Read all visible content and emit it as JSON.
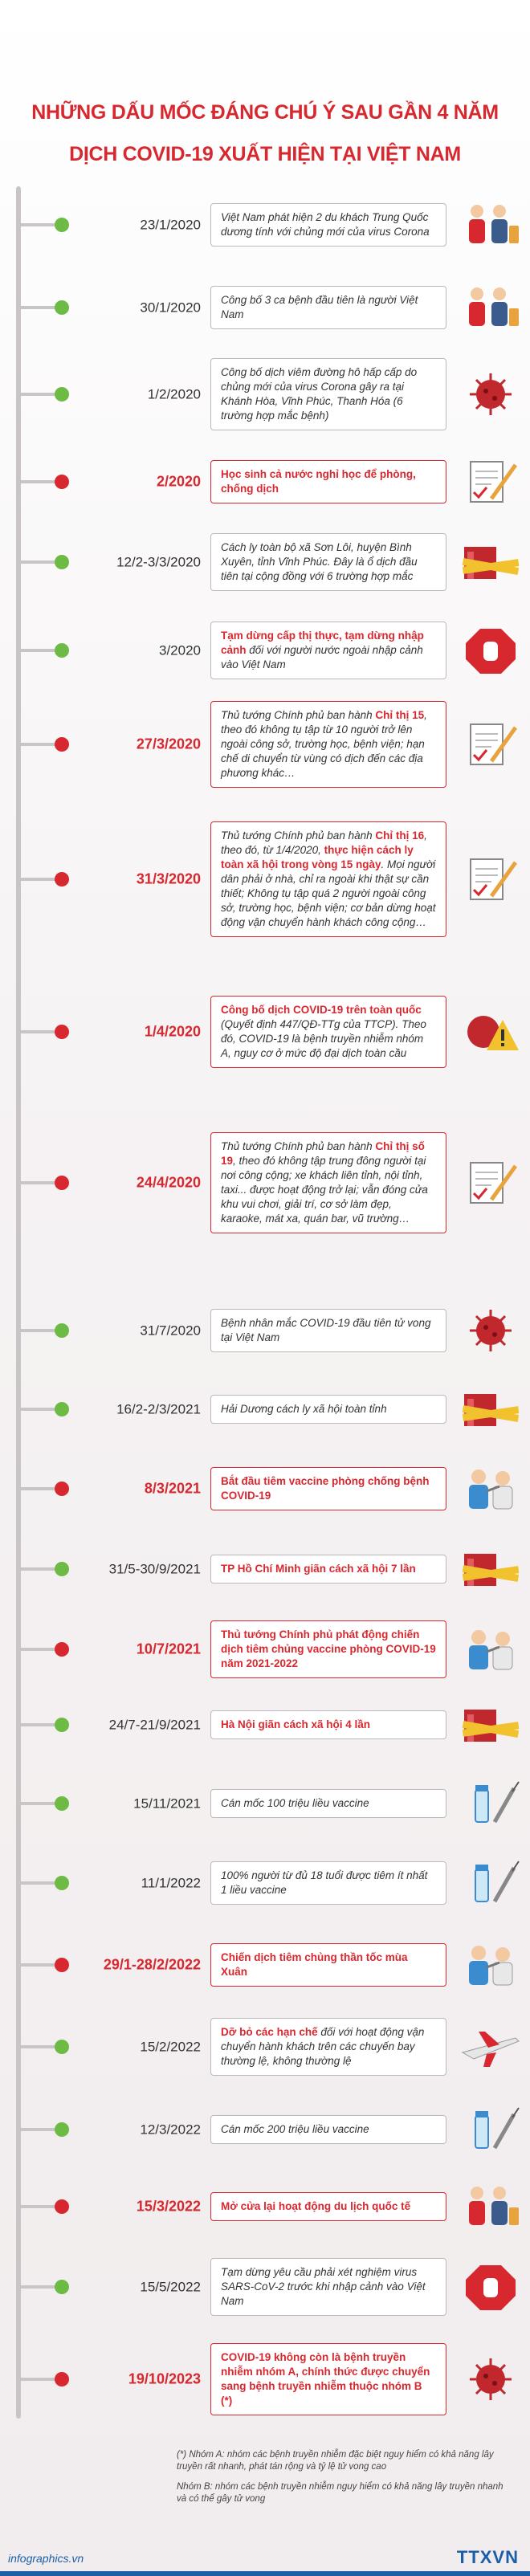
{
  "header": {
    "title_lines": [
      "NHỮNG DẤU MỐC ĐÁNG CHÚ Ý SAU GẦN 4 NĂM",
      "DỊCH COVID-19 XUẤT HIỆN TẠI VIỆT NAM"
    ]
  },
  "timeline": [
    {
      "date": "23/1/2020",
      "highlight": false,
      "parts": [
        {
          "text": "Việt Nam phát hiện 2 du khách Trung Quốc dương tính với chủng mới của virus Corona",
          "strong": false
        }
      ]
    },
    {
      "date": "30/1/2020",
      "highlight": false,
      "parts": [
        {
          "text": "Công bố 3 ca bệnh đầu tiên là người Việt Nam",
          "strong": false
        }
      ]
    },
    {
      "date": "1/2/2020",
      "highlight": false,
      "parts": [
        {
          "text": "Công bố dịch viêm đường hô hấp cấp do chủng mới của virus Corona gây ra tại Khánh Hòa, Vĩnh Phúc, Thanh Hóa (6 trường hợp mắc bệnh)",
          "strong": false
        }
      ]
    },
    {
      "date": "2/2020",
      "highlight": true,
      "parts": [
        {
          "text": "Học sinh cả nước nghỉ học để phòng, chống dịch",
          "strong": true
        }
      ]
    },
    {
      "date": "12/2-3/3/2020",
      "highlight": false,
      "parts": [
        {
          "text": "Cách ly toàn bộ xã Sơn Lôi, huyện Bình Xuyên, tỉnh Vĩnh Phúc. Đây là ổ dịch đầu tiên tại cộng đồng với 6 trường hợp mắc",
          "strong": false
        }
      ]
    },
    {
      "date": "3/2020",
      "highlight": false,
      "parts": [
        {
          "text": "Tạm dừng cấp thị thực, tạm dừng nhập cảnh",
          "strong": true
        },
        {
          "text": " đối với người nước ngoài nhập cảnh vào Việt Nam",
          "strong": false
        }
      ]
    },
    {
      "date": "27/3/2020",
      "highlight": true,
      "parts": [
        {
          "text": "Thủ tướng Chính phủ ban hành ",
          "strong": false
        },
        {
          "text": "Chỉ thị 15",
          "strong": true
        },
        {
          "text": ", theo đó không tụ tập từ 10 người trở lên ngoài công sở, trường học, bệnh viện; hạn chế di chuyển từ vùng có dịch đến các địa phương khác…",
          "strong": false
        }
      ]
    },
    {
      "date": "31/3/2020",
      "highlight": true,
      "parts": [
        {
          "text": "Thủ tướng Chính phủ ban hành ",
          "strong": false
        },
        {
          "text": "Chỉ thị 16",
          "strong": true
        },
        {
          "text": ", theo đó, từ 1/4/2020, ",
          "strong": false
        },
        {
          "text": "thực hiện cách ly toàn xã hội trong vòng 15 ngày",
          "strong": true
        },
        {
          "text": ". Mọi người dân phải ở nhà, chỉ ra ngoài khi thật sự cần thiết; Không tụ tập quá 2 người ngoài công sở, trường học, bệnh viện; cơ bản dừng hoạt động vận chuyển hành khách công cộng…",
          "strong": false
        }
      ]
    },
    {
      "date": "1/4/2020",
      "highlight": true,
      "parts": [
        {
          "text": "Công bố dịch COVID-19 trên toàn quốc",
          "strong": true
        },
        {
          "text": " (Quyết định 447/QĐ-TTg của TTCP). Theo đó, COVID-19 là bệnh truyền nhiễm nhóm A, nguy cơ ở mức độ đại dịch toàn cầu",
          "strong": false
        }
      ]
    },
    {
      "date": "24/4/2020",
      "highlight": true,
      "parts": [
        {
          "text": "Thủ tướng Chính phủ ban hành ",
          "strong": false
        },
        {
          "text": "Chỉ thị số 19",
          "strong": true
        },
        {
          "text": ", theo đó không tập trung đông người tại nơi công cộng; xe khách liên tỉnh, nội tỉnh, taxi... được hoạt động trở lại; vẫn đóng cửa khu vui chơi, giải trí, cơ sở làm đẹp, karaoke, mát xa, quán bar, vũ trường…",
          "strong": false
        }
      ]
    },
    {
      "date": "31/7/2020",
      "highlight": false,
      "parts": [
        {
          "text": "Bệnh nhân mắc COVID-19 đầu tiên tử vong tại Việt Nam",
          "strong": false
        }
      ]
    },
    {
      "date": "16/2-2/3/2021",
      "highlight": false,
      "parts": [
        {
          "text": "Hải Dương cách ly xã hội toàn tỉnh",
          "strong": false
        }
      ]
    },
    {
      "date": "8/3/2021",
      "highlight": true,
      "parts": [
        {
          "text": "Bắt đầu tiêm vaccine phòng chống bệnh COVID-19",
          "strong": true
        }
      ]
    },
    {
      "date": "31/5-30/9/2021",
      "highlight": false,
      "parts": [
        {
          "text": "TP Hồ Chí Minh giãn cách xã hội 7 lần",
          "strong": true
        }
      ]
    },
    {
      "date": "10/7/2021",
      "highlight": true,
      "parts": [
        {
          "text": "Thủ tướng Chính phủ phát động chiến dịch tiêm chủng vaccine phòng COVID-19 năm 2021-2022",
          "strong": true
        }
      ]
    },
    {
      "date": "24/7-21/9/2021",
      "highlight": false,
      "parts": [
        {
          "text": "Hà Nội giãn cách xã hội 4 lần",
          "strong": true
        }
      ]
    },
    {
      "date": "15/11/2021",
      "highlight": false,
      "parts": [
        {
          "text": "Cán mốc 100 triệu liều vaccine",
          "strong": false
        }
      ]
    },
    {
      "date": "11/1/2022",
      "highlight": false,
      "parts": [
        {
          "text": "100% người từ đủ 18 tuổi được tiêm ít nhất 1 liều vaccine",
          "strong": false
        }
      ]
    },
    {
      "date": "29/1-28/2/2022",
      "highlight": true,
      "parts": [
        {
          "text": "Chiến dịch tiêm chủng thần tốc mùa Xuân",
          "strong": true
        }
      ]
    },
    {
      "date": "15/2/2022",
      "highlight": false,
      "parts": [
        {
          "text": "Dỡ bỏ các hạn chế",
          "strong": true
        },
        {
          "text": " đối với hoạt động vận chuyển hành khách trên các chuyến bay thường lệ, không thường lệ",
          "strong": false
        }
      ]
    },
    {
      "date": "12/3/2022",
      "highlight": false,
      "parts": [
        {
          "text": "Cán mốc 200 triệu liều vaccine",
          "strong": false
        }
      ]
    },
    {
      "date": "15/3/2022",
      "highlight": true,
      "parts": [
        {
          "text": "Mở cửa lại hoạt động du lịch quốc tế",
          "strong": true
        }
      ]
    },
    {
      "date": "15/5/2022",
      "highlight": false,
      "parts": [
        {
          "text": "Tạm dừng yêu cầu phải xét nghiệm virus SARS-CoV-2 trước khi nhập cảnh vào Việt Nam",
          "strong": false
        }
      ]
    },
    {
      "date": "19/10/2023",
      "highlight": true,
      "parts": [
        {
          "text": "COVID-19 không còn là bệnh truyền nhiễm nhóm A, chính thức được chuyển sang bệnh truyền nhiễm thuộc nhóm B (*)",
          "strong": true
        }
      ]
    }
  ],
  "notes": [
    "(*) Nhóm A: nhóm các bệnh truyền nhiễm đặc biệt nguy hiểm có khả năng lây truyền rất nhanh, phát tán rộng và tỷ lệ tử vong cao",
    "Nhóm B: nhóm các bệnh truyền nhiễm nguy hiểm có khả năng lây truyền nhanh và có thể gây tử vong"
  ],
  "footer": {
    "site": "infographics.vn",
    "logo": "TTXVN"
  }
}
